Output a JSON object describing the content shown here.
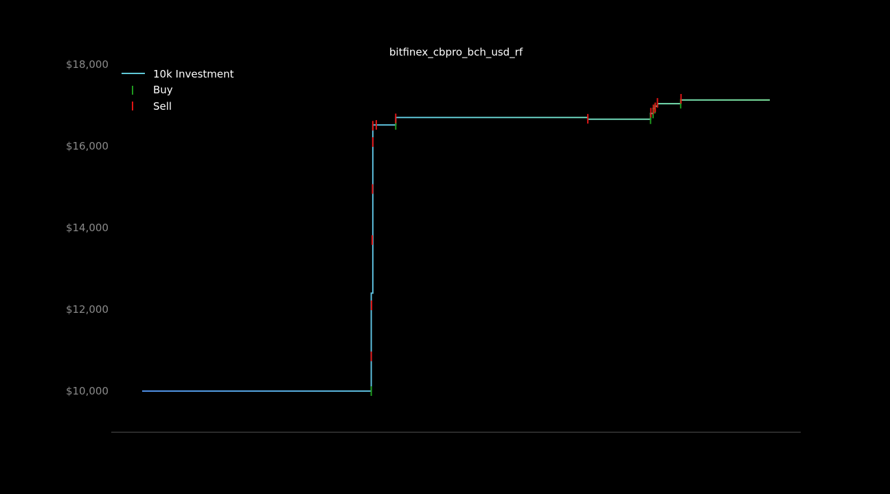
{
  "chart_data": {
    "type": "line",
    "title": "bitfinex_cbpro_bch_usd_rf",
    "xlabel": "",
    "ylabel": "",
    "x_ticks_visible": false,
    "xlim": [
      0,
      100
    ],
    "ylim": [
      9000,
      18200
    ],
    "y_ticks": [
      10000,
      12000,
      14000,
      16000,
      18000
    ],
    "y_tick_labels": [
      "$10,000",
      "$12,000",
      "$14,000",
      "$16,000",
      "$18,000"
    ],
    "grid": false,
    "legend": {
      "position": "top-left",
      "entries": [
        "10k Investment",
        "Buy",
        "Sell"
      ]
    },
    "colors": {
      "background": "#000000",
      "axis": "#555555",
      "tick_label": "#8a8a8a",
      "line_start": "#4f8fe8",
      "line_mid": "#5fc8d8",
      "line_end": "#7ee8a0",
      "buy": "#1f9a1f",
      "sell": "#e01515"
    },
    "series": [
      {
        "name": "10k Investment",
        "x": [
          0,
          36.5,
          36.5,
          36.75,
          36.75,
          40.4,
          40.4,
          48,
          60,
          71,
          71,
          81,
          81,
          81.4,
          81.4,
          81.7,
          81.7,
          82.1,
          82.1,
          85.8,
          85.8,
          100
        ],
        "y": [
          10000,
          10000,
          12400,
          12400,
          16520,
          16520,
          16700,
          16700,
          16700,
          16700,
          16660,
          16660,
          16800,
          16800,
          16920,
          16920,
          16980,
          16980,
          17040,
          17040,
          17130,
          17130
        ]
      },
      {
        "name": "Buy",
        "points": [
          [
            36.5,
            10000
          ],
          [
            40.4,
            16520
          ],
          [
            81,
            16660
          ],
          [
            81.4,
            16800
          ],
          [
            81.7,
            16920
          ],
          [
            85.8,
            17040
          ]
        ]
      },
      {
        "name": "Sell",
        "points": [
          [
            36.5,
            10850
          ],
          [
            36.55,
            12100
          ],
          [
            36.65,
            13700
          ],
          [
            36.7,
            14950
          ],
          [
            36.75,
            16100
          ],
          [
            36.75,
            16500
          ],
          [
            37.3,
            16520
          ],
          [
            40.4,
            16680
          ],
          [
            71,
            16670
          ],
          [
            81.05,
            16820
          ],
          [
            81.45,
            16900
          ],
          [
            81.75,
            16950
          ],
          [
            82.1,
            17060
          ],
          [
            85.85,
            17160
          ]
        ]
      }
    ]
  }
}
